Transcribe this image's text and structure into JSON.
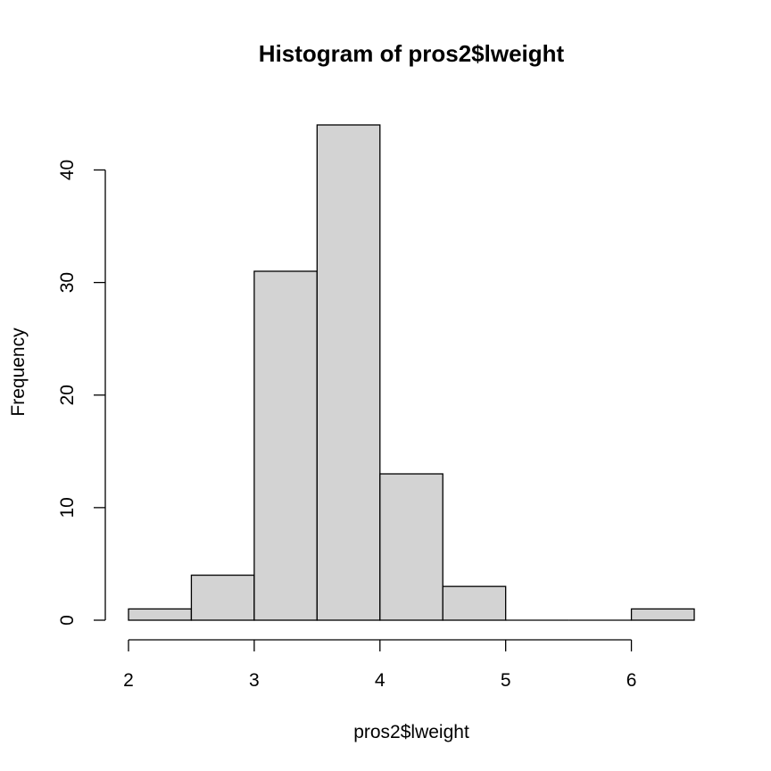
{
  "chart_data": {
    "type": "bar",
    "title": "Histogram of pros2$lweight",
    "xlabel": "pros2$lweight",
    "ylabel": "Frequency",
    "bins": [
      {
        "x0": 2.0,
        "x1": 2.5,
        "count": 1
      },
      {
        "x0": 2.5,
        "x1": 3.0,
        "count": 4
      },
      {
        "x0": 3.0,
        "x1": 3.5,
        "count": 31
      },
      {
        "x0": 3.5,
        "x1": 4.0,
        "count": 44
      },
      {
        "x0": 4.0,
        "x1": 4.5,
        "count": 13
      },
      {
        "x0": 4.5,
        "x1": 5.0,
        "count": 3
      },
      {
        "x0": 5.0,
        "x1": 5.5,
        "count": 0
      },
      {
        "x0": 5.5,
        "x1": 6.0,
        "count": 0
      },
      {
        "x0": 6.0,
        "x1": 6.5,
        "count": 1
      }
    ],
    "xticks": [
      2,
      3,
      4,
      5,
      6
    ],
    "yticks": [
      0,
      10,
      20,
      30,
      40
    ],
    "xlim": [
      2,
      6.5
    ],
    "ylim": [
      0,
      44
    ],
    "grid": false,
    "bar_color": "#d3d3d3",
    "edge_color": "#000000"
  }
}
